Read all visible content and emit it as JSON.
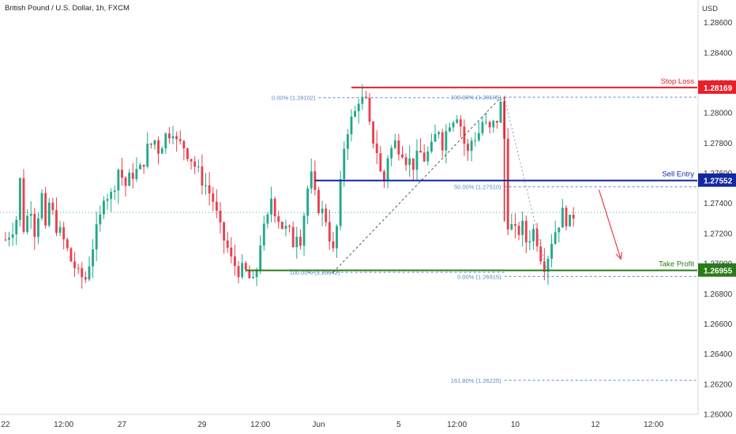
{
  "header": {
    "title": "British Pound / U.S. Dollar, 1h, FXCM",
    "currency": "USD"
  },
  "colors": {
    "up": "#22a98a",
    "down": "#e8404e",
    "stop": "#e8202a",
    "entry": "#1428a0",
    "profit": "#2a7a19",
    "fib": "#5b8ac6",
    "arrow": "#e8404e",
    "last": "#22a98a"
  },
  "chart_data": {
    "type": "candlestick",
    "title": "British Pound / U.S. Dollar, 1h, FXCM",
    "ylim": [
      1.26,
      1.2875
    ],
    "y_ticks": [
      "1.28600",
      "1.28400",
      "1.28200",
      "1.28000",
      "1.27800",
      "1.27600",
      "1.27400",
      "1.27200",
      "1.27000",
      "1.26800",
      "1.26600",
      "1.26400",
      "1.26200",
      "1.26000"
    ],
    "x_ticks": [
      {
        "label": "22",
        "x": 0
      },
      {
        "label": "12:00",
        "x": 16
      },
      {
        "label": "27",
        "x": 32
      },
      {
        "label": "29",
        "x": 54
      },
      {
        "label": "12:00",
        "x": 70
      },
      {
        "label": "Jun",
        "x": 86
      },
      {
        "label": "5",
        "x": 108
      },
      {
        "label": "12:00",
        "x": 124
      },
      {
        "label": "10",
        "x": 140
      },
      {
        "label": "12",
        "x": 162
      },
      {
        "label": "12:00",
        "x": 178
      }
    ],
    "x_range": [
      -1.5,
      190
    ],
    "candle_points": [
      [
        0,
        1.2716
      ],
      [
        2,
        1.2724
      ],
      [
        3,
        1.273
      ],
      [
        4,
        1.2755
      ],
      [
        5,
        1.2724
      ],
      [
        7,
        1.2738
      ],
      [
        8,
        1.2722
      ],
      [
        10,
        1.2745
      ],
      [
        11,
        1.272
      ],
      [
        12,
        1.274
      ],
      [
        14,
        1.2725
      ],
      [
        16,
        1.2715
      ],
      [
        18,
        1.2702
      ],
      [
        19,
        1.2698
      ],
      [
        20,
        1.2692
      ],
      [
        22,
        1.269
      ],
      [
        24,
        1.2712
      ],
      [
        26,
        1.273
      ],
      [
        27,
        1.2747
      ],
      [
        29,
        1.2745
      ],
      [
        31,
        1.2763
      ],
      [
        33,
        1.2752
      ],
      [
        35,
        1.276
      ],
      [
        37,
        1.2762
      ],
      [
        39,
        1.2776
      ],
      [
        41,
        1.2782
      ],
      [
        42,
        1.2776
      ],
      [
        44,
        1.2785
      ],
      [
        46,
        1.279
      ],
      [
        47,
        1.278
      ],
      [
        49,
        1.2778
      ],
      [
        51,
        1.277
      ],
      [
        53,
        1.276
      ],
      [
        55,
        1.2752
      ],
      [
        57,
        1.2742
      ],
      [
        59,
        1.2722
      ],
      [
        61,
        1.271
      ],
      [
        62,
        1.2702
      ],
      [
        64,
        1.2696
      ],
      [
        66,
        1.2694
      ],
      [
        67,
        1.269
      ],
      [
        68,
        1.2686
      ],
      [
        69,
        1.2697
      ],
      [
        70,
        1.2715
      ],
      [
        72,
        1.2729
      ],
      [
        73,
        1.2744
      ],
      [
        74,
        1.2736
      ],
      [
        76,
        1.2725
      ],
      [
        78,
        1.272
      ],
      [
        79,
        1.2714
      ],
      [
        80,
        1.2722
      ],
      [
        81,
        1.2717
      ],
      [
        83,
        1.275
      ],
      [
        84,
        1.2757
      ],
      [
        85,
        1.2744
      ],
      [
        86,
        1.2738
      ],
      [
        88,
        1.273
      ],
      [
        90,
        1.2707
      ],
      [
        91,
        1.2724
      ],
      [
        93,
        1.2778
      ],
      [
        94,
        1.279
      ],
      [
        96,
        1.28
      ],
      [
        97,
        1.281
      ],
      [
        99,
        1.2806
      ],
      [
        100,
        1.279
      ],
      [
        102,
        1.2775
      ],
      [
        103,
        1.276
      ],
      [
        104,
        1.2755
      ],
      [
        105,
        1.2772
      ],
      [
        107,
        1.278
      ],
      [
        109,
        1.2776
      ],
      [
        110,
        1.277
      ],
      [
        112,
        1.2766
      ],
      [
        114,
        1.2773
      ],
      [
        115,
        1.277
      ],
      [
        117,
        1.2776
      ],
      [
        118,
        1.2784
      ],
      [
        119,
        1.279
      ],
      [
        120,
        1.278
      ],
      [
        122,
        1.2795
      ],
      [
        124,
        1.28
      ],
      [
        125,
        1.2792
      ],
      [
        126,
        1.278
      ],
      [
        127,
        1.2773
      ],
      [
        128,
        1.2782
      ],
      [
        130,
        1.2787
      ],
      [
        131,
        1.2794
      ],
      [
        133,
        1.2788
      ],
      [
        135,
        1.2796
      ],
      [
        136,
        1.2805
      ],
      [
        137,
        1.2783
      ],
      [
        138,
        1.2728
      ],
      [
        140,
        1.272
      ],
      [
        142,
        1.2724
      ],
      [
        143,
        1.2715
      ],
      [
        145,
        1.2722
      ],
      [
        146,
        1.2716
      ],
      [
        147,
        1.2706
      ],
      [
        148,
        1.27
      ],
      [
        149,
        1.2706
      ],
      [
        150,
        1.2716
      ],
      [
        152,
        1.2728
      ],
      [
        153,
        1.2733
      ],
      [
        155,
        1.2727
      ],
      [
        156,
        1.2733
      ]
    ],
    "fibonacci": {
      "retracement_1": [
        {
          "level": "0.00% (1.28102)",
          "price": 1.28102
        },
        {
          "level": "100.00% (1.26942)",
          "price": 1.26942
        }
      ],
      "retracement_2": [
        {
          "level": "100.00% (1.28105)",
          "price": 1.28105
        },
        {
          "level": "50.00% (1.27510)",
          "price": 1.2751
        },
        {
          "level": "0.00% (1.26915)",
          "price": 1.26915
        }
      ],
      "extension": [
        {
          "level": "161.80% (1.26225)",
          "price": 1.26225
        }
      ]
    },
    "trade_levels": {
      "stop_loss": {
        "label": "Stop Loss",
        "price": 1.28169,
        "price_label": "1.28169"
      },
      "sell_entry": {
        "label": "Sell Entry",
        "price": 1.27552,
        "price_label": "1.27552"
      },
      "take_profit": {
        "label": "Take Profit",
        "price": 1.26955,
        "price_label": "1.26955"
      }
    },
    "last_price": 1.2734,
    "grid": false
  }
}
